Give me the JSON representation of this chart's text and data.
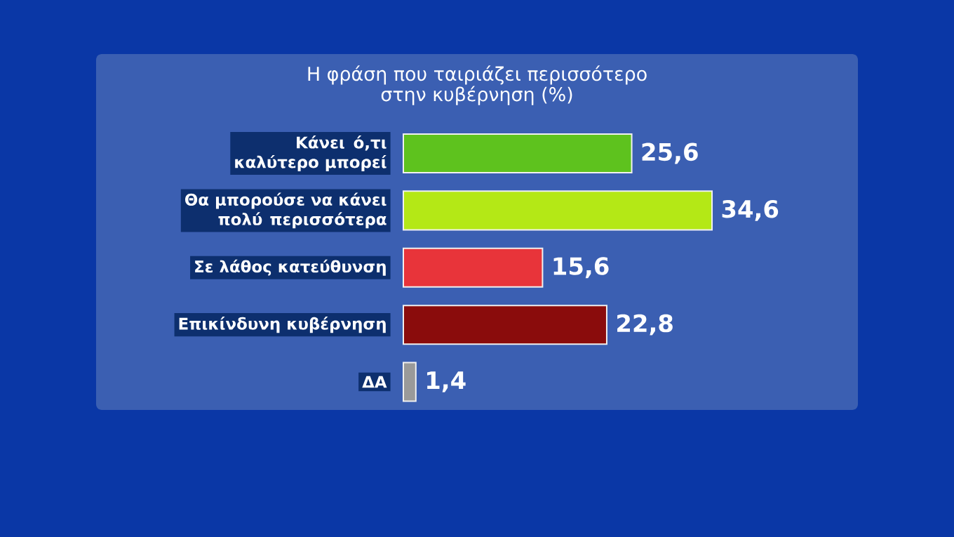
{
  "chart_data": {
    "type": "bar",
    "orientation": "horizontal",
    "title": "Η φράση που ταιριάζει περισσότερο στην κυβέρνηση (%)",
    "categories": [
      "Κάνει ό,τι καλύτερο μπορεί",
      "Θα μπορούσε να κάνει πολύ περισσότερα",
      "Σε λάθος κατεύθυνση",
      "Επικίνδυνη κυβέρνηση",
      "ΔΑ"
    ],
    "values": [
      25.6,
      34.6,
      15.6,
      22.8,
      1.4
    ],
    "colors": [
      "#5ec21e",
      "#b4e816",
      "#e8343a",
      "#8a0c0c",
      "#9a9a9a"
    ],
    "value_labels": [
      "25,6",
      "34,6",
      "15,6",
      "22,8",
      "1,4"
    ]
  }
}
